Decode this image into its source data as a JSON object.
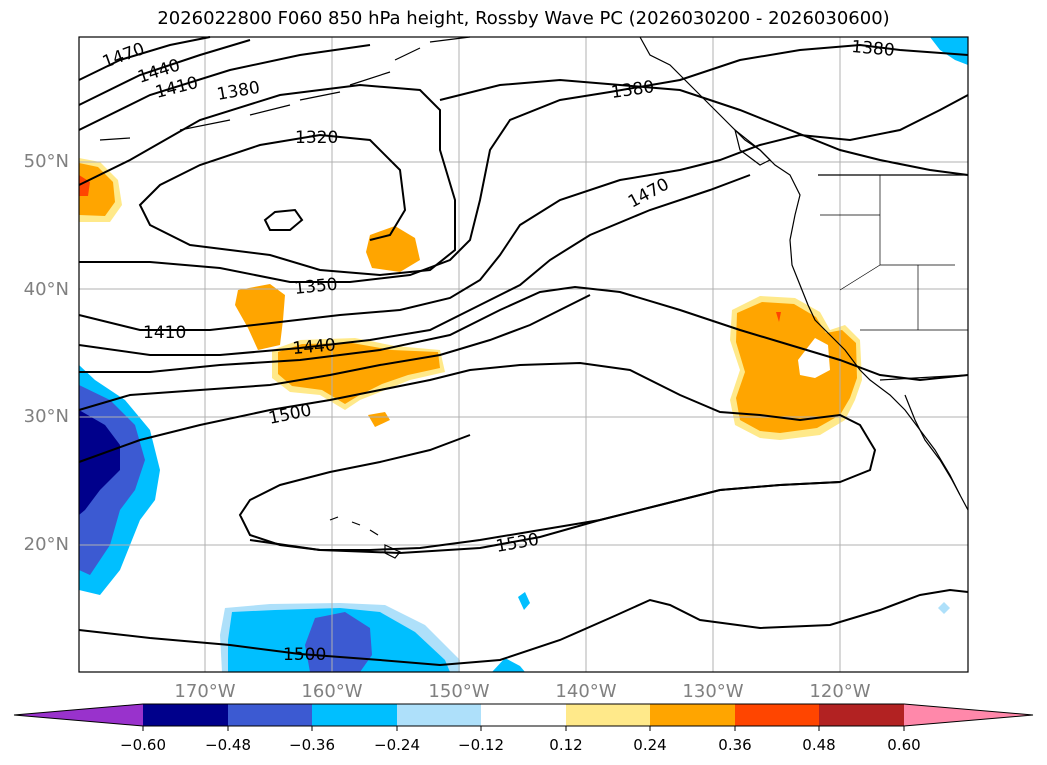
{
  "title": "2026022800 F060 850 hPa height, Rossby Wave PC (2026030200 - 2026030600)",
  "axes": {
    "lat_labels": [
      "50°N",
      "40°N",
      "30°N",
      "20°N"
    ],
    "lon_labels": [
      "170°W",
      "160°W",
      "150°W",
      "140°W",
      "130°W",
      "120°W"
    ]
  },
  "contour_labels": [
    "1470",
    "1440",
    "1410",
    "1380",
    "1320",
    "1380",
    "1380",
    "1470",
    "1350",
    "1410",
    "1440",
    "1500",
    "1530",
    "1500"
  ],
  "colorbar": {
    "ticks": [
      "−0.60",
      "−0.48",
      "−0.36",
      "−0.24",
      "−0.12",
      "0.12",
      "0.24",
      "0.36",
      "0.48",
      "0.60"
    ],
    "colors": [
      "#9932cc",
      "#00008b",
      "#3c5ad2",
      "#00bfff",
      "#aee0fa",
      "#ffffff",
      "#ffe98a",
      "#ffa500",
      "#ff4500",
      "#b22222",
      "#ff88aa"
    ]
  },
  "chart_data": {
    "type": "contour-map",
    "title": "2026022800 F060 850 hPa height, Rossby Wave PC (2026030200 - 2026030600)",
    "lat_range": [
      10,
      60
    ],
    "lon_range": [
      -180,
      -110
    ],
    "contour_levels": [
      1320,
      1350,
      1380,
      1410,
      1440,
      1470,
      1500,
      1530
    ],
    "fill_levels": [
      -0.6,
      -0.48,
      -0.36,
      -0.24,
      -0.12,
      0.12,
      0.24,
      0.36,
      0.48,
      0.6
    ],
    "grid": true
  }
}
